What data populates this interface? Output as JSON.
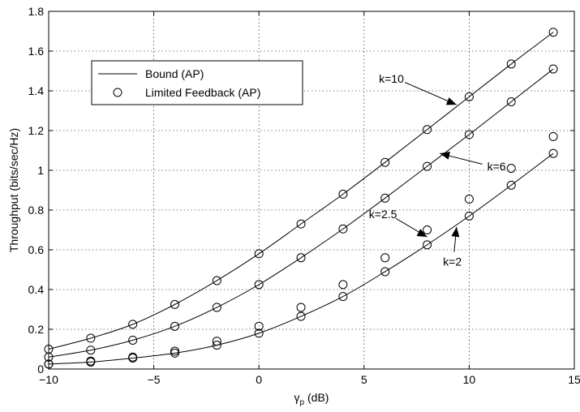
{
  "chart_data": {
    "type": "line",
    "title": "",
    "xlabel": "γ",
    "xlabel_sub": "p",
    "xlabel_suffix": " (dB)",
    "ylabel": "Throughput (bits/sec/Hz)",
    "xlim": [
      -10,
      15
    ],
    "ylim": [
      0,
      1.8
    ],
    "xticks": [
      -10,
      -5,
      0,
      5,
      10,
      15
    ],
    "xtick_labels": [
      "−10",
      "−5",
      "0",
      "5",
      "10",
      "15"
    ],
    "yticks": [
      0,
      0.2,
      0.4,
      0.6,
      0.8,
      1,
      1.2,
      1.4,
      1.6,
      1.8
    ],
    "ytick_labels": [
      "0",
      "0.2",
      "0.4",
      "0.6",
      "0.8",
      "1",
      "1.2",
      "1.4",
      "1.6",
      "1.8"
    ],
    "grid": true,
    "legend": {
      "placement": "upper-left",
      "entries": [
        {
          "label": "Bound (AP)",
          "marker": "line"
        },
        {
          "label": "Limited Feedback (AP)",
          "marker": "circle"
        }
      ]
    },
    "x": [
      -10,
      -8,
      -6,
      -4,
      -2,
      0,
      2,
      4,
      6,
      8,
      10,
      12,
      14
    ],
    "series": [
      {
        "kind": "bound",
        "values": [
          0.1,
          0.155,
          0.225,
          0.325,
          0.445,
          0.58,
          0.73,
          0.88,
          1.04,
          1.205,
          1.37,
          1.535,
          1.695
        ]
      },
      {
        "kind": "bound",
        "values": [
          0.06,
          0.095,
          0.145,
          0.215,
          0.31,
          0.425,
          0.56,
          0.705,
          0.86,
          1.02,
          1.18,
          1.345,
          1.51
        ]
      },
      {
        "kind": "bound",
        "values": [
          0.025,
          0.035,
          0.055,
          0.08,
          0.12,
          0.18,
          0.265,
          0.365,
          0.49,
          0.625,
          0.77,
          0.925,
          1.085
        ]
      },
      {
        "kind": "limited-feedback",
        "values": [
          0.1,
          0.155,
          0.225,
          0.325,
          0.445,
          0.58,
          0.73,
          0.88,
          1.04,
          1.205,
          1.37,
          1.535,
          1.695
        ]
      },
      {
        "kind": "limited-feedback",
        "values": [
          0.06,
          0.095,
          0.145,
          0.215,
          0.31,
          0.425,
          0.56,
          0.705,
          0.86,
          1.02,
          1.18,
          1.345,
          1.51
        ]
      },
      {
        "kind": "limited-feedback",
        "values": [
          0.025,
          0.04,
          0.06,
          0.09,
          0.14,
          0.215,
          0.31,
          0.425,
          0.56,
          0.7,
          0.855,
          1.01,
          1.17
        ]
      },
      {
        "kind": "limited-feedback",
        "values": [
          0.025,
          0.035,
          0.055,
          0.08,
          0.12,
          0.18,
          0.265,
          0.365,
          0.49,
          0.625,
          0.77,
          0.925,
          1.085
        ]
      }
    ],
    "annotations": [
      {
        "text": "k=10",
        "text_at": [
          6.3,
          1.44
        ],
        "arrow_to": [
          9.4,
          1.33
        ]
      },
      {
        "text": "k=6",
        "text_at": [
          11.3,
          1.0
        ],
        "arrow_to": [
          8.6,
          1.085
        ]
      },
      {
        "text": "k=2.5",
        "text_at": [
          5.9,
          0.76
        ],
        "arrow_to": [
          8.0,
          0.665
        ]
      },
      {
        "text": "k=2",
        "text_at": [
          9.2,
          0.52
        ],
        "arrow_to": [
          9.4,
          0.715
        ]
      }
    ]
  }
}
